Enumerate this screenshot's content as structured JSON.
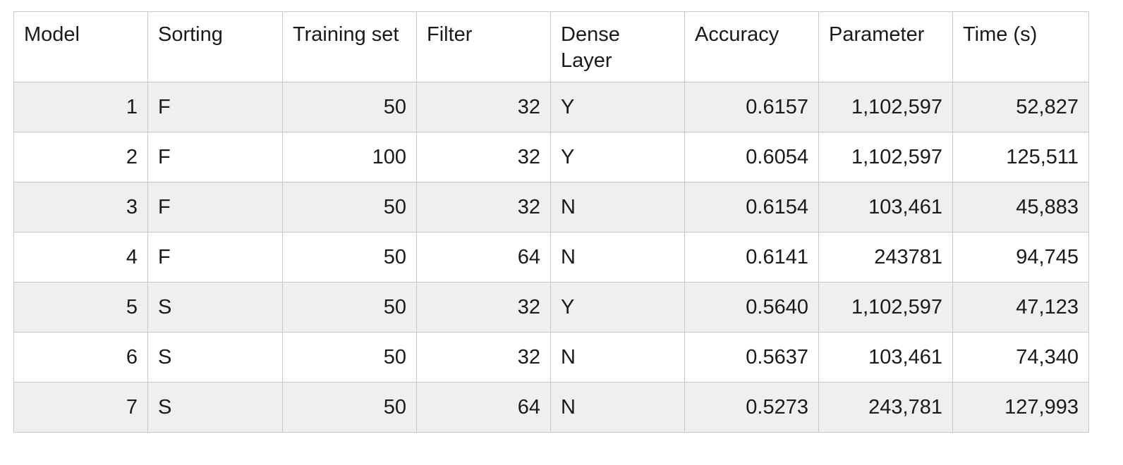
{
  "table": {
    "headers": [
      "Model",
      "Sorting",
      "Training set",
      "Filter",
      "Dense Layer",
      "Accuracy",
      "Parameter",
      "Time (s)"
    ],
    "rows": [
      [
        "1",
        "F",
        "50",
        "32",
        "Y",
        "0.6157",
        "1,102,597",
        "52,827"
      ],
      [
        "2",
        "F",
        "100",
        "32",
        "Y",
        "0.6054",
        "1,102,597",
        "125,511"
      ],
      [
        "3",
        "F",
        "50",
        "32",
        "N",
        "0.6154",
        "103,461",
        "45,883"
      ],
      [
        "4",
        "F",
        "50",
        "64",
        "N",
        "0.6141",
        "243781",
        "94,745"
      ],
      [
        "5",
        "S",
        "50",
        "32",
        "Y",
        "0.5640",
        "1,102,597",
        "47,123"
      ],
      [
        "6",
        "S",
        "50",
        "32",
        "N",
        "0.5637",
        "103,461",
        "74,340"
      ],
      [
        "7",
        "S",
        "50",
        "64",
        "N",
        "0.5273",
        "243,781",
        "127,993"
      ]
    ]
  }
}
